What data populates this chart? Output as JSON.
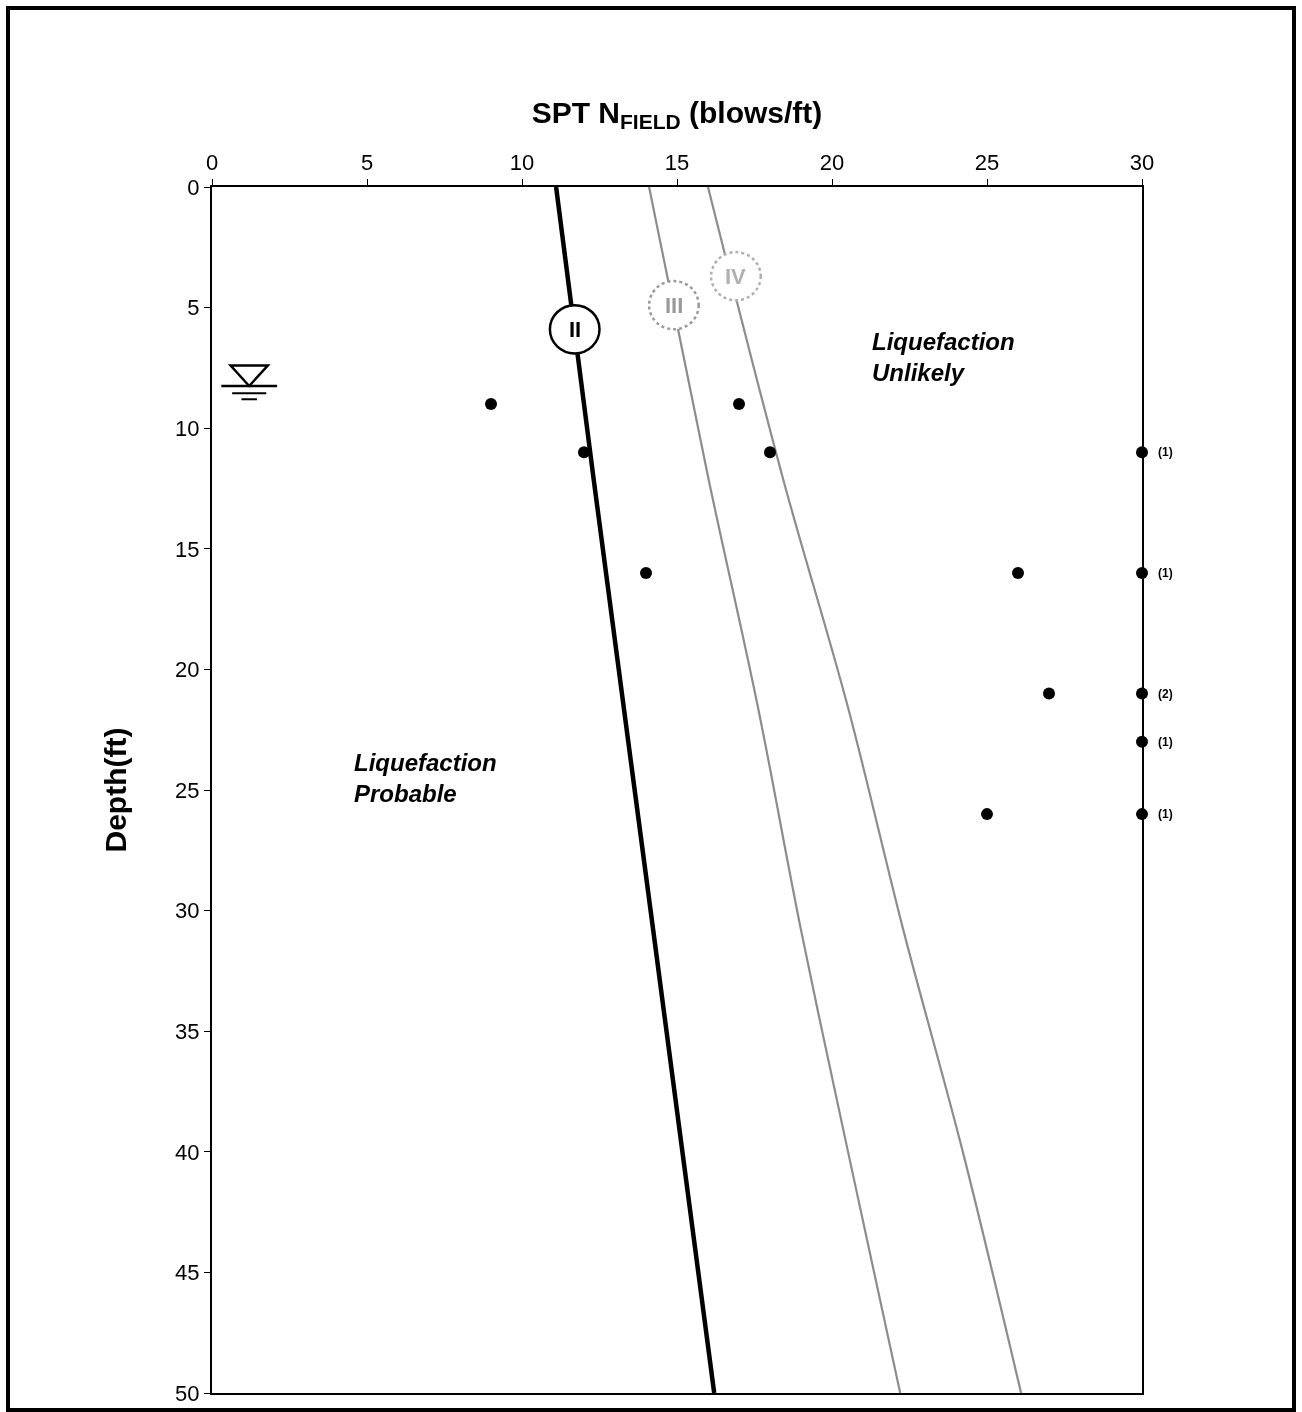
{
  "chart_data": {
    "type": "scatter",
    "xlabel": "SPT N$_{FIELD}$ (blows/ft)",
    "ylabel": "Depth(ft)",
    "xlim": [
      0,
      30
    ],
    "xticks": [
      0,
      5,
      10,
      15,
      20,
      25,
      30
    ],
    "ylim": [
      50,
      0
    ],
    "yticks": [
      0,
      5,
      10,
      15,
      20,
      25,
      30,
      35,
      40,
      45,
      50
    ],
    "marker": "circle",
    "series": [
      {
        "type": "line",
        "color": "#000000",
        "marker": "none",
        "x": [
          11.1,
          12.3,
          14.2,
          16.2
        ],
        "values": [
          0,
          12,
          30.5,
          50
        ]
      },
      {
        "type": "line",
        "color": "#8c8c8c",
        "marker": "none",
        "x": [
          14.1,
          16.0,
          17.6,
          19.0,
          20.5,
          22.2
        ],
        "values": [
          0,
          12,
          21.5,
          30.8,
          39.9,
          50
        ]
      },
      {
        "type": "line",
        "color": "#8c8c8c",
        "marker": "none",
        "x": [
          16.0,
          18.4,
          20.5,
          22.3,
          24.2,
          26.1
        ],
        "values": [
          0,
          12,
          21.5,
          30.8,
          39.9,
          50
        ]
      },
      {
        "color": "#000000",
        "x": [
          9,
          12,
          14,
          17,
          18,
          26,
          27,
          25,
          30,
          30,
          30,
          30,
          30
        ],
        "values": [
          9,
          11,
          16,
          9,
          11,
          16,
          21,
          26,
          11,
          16,
          21,
          23,
          26
        ]
      }
    ],
    "annotations": [
      {
        "text": "II",
        "x": 11.7,
        "y": 5.9
      },
      {
        "text": "III",
        "x": 14.9,
        "y": 4.9
      },
      {
        "text": "IV",
        "x": 16.9,
        "y": 3.7
      },
      "Liquefaction\nUnlikely",
      "Liquefaction\nProbable",
      {
        "text": "(1)",
        "x": 30,
        "y": 11
      },
      {
        "text": "(1)",
        "x": 30,
        "y": 16
      },
      {
        "text": "(2)",
        "x": 30,
        "y": 21
      },
      {
        "text": "(1)",
        "x": 30,
        "y": 23
      },
      {
        "text": "(1)",
        "x": 30,
        "y": 26
      }
    ]
  }
}
